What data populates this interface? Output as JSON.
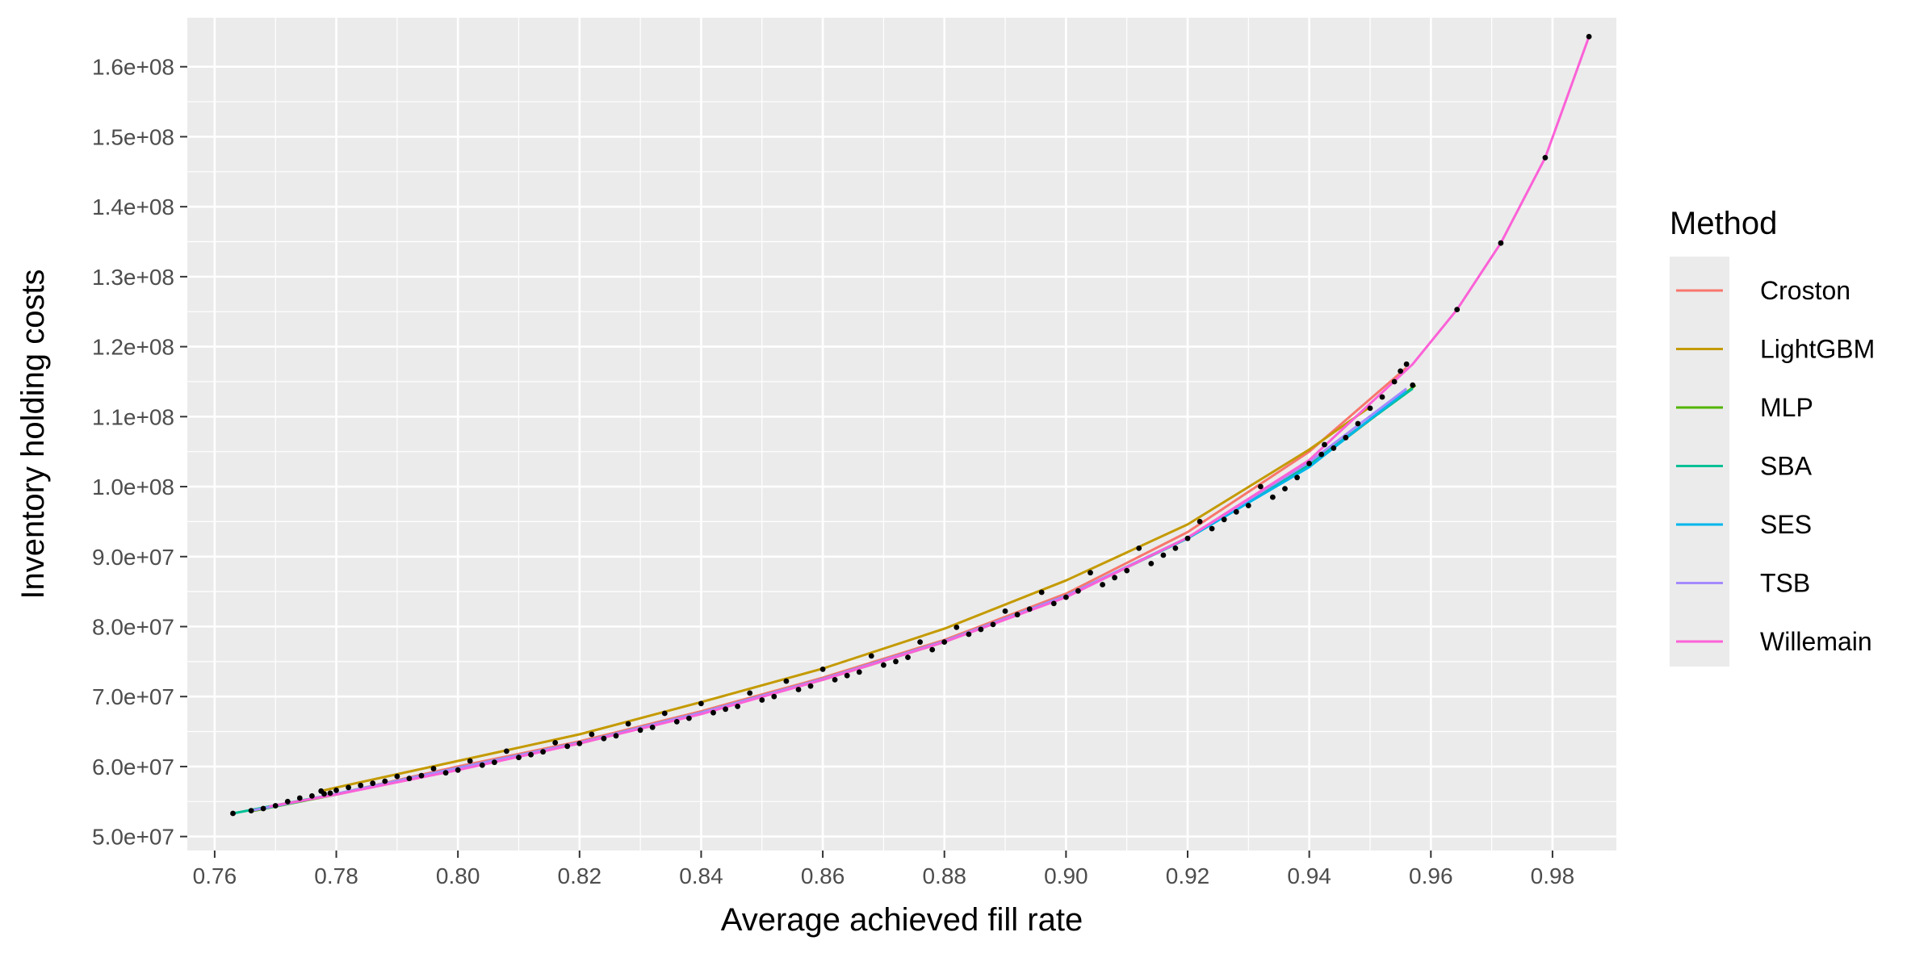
{
  "chart_data": {
    "type": "line",
    "xlabel": "Average achieved fill rate",
    "ylabel": "Inventory holding costs",
    "xlim": [
      0.7555,
      0.9905
    ],
    "ylim": [
      48000000,
      167000000
    ],
    "x_ticks": [
      0.76,
      0.78,
      0.8,
      0.82,
      0.84,
      0.86,
      0.88,
      0.9,
      0.92,
      0.94,
      0.96,
      0.98
    ],
    "x_tick_labels": [
      "0.76",
      "0.78",
      "0.80",
      "0.82",
      "0.84",
      "0.86",
      "0.88",
      "0.90",
      "0.92",
      "0.94",
      "0.96",
      "0.98"
    ],
    "y_ticks": [
      50000000,
      60000000,
      70000000,
      80000000,
      90000000,
      100000000,
      110000000,
      120000000,
      130000000,
      140000000,
      150000000,
      160000000
    ],
    "y_tick_labels": [
      "5.0e+07",
      "6.0e+07",
      "7.0e+07",
      "8.0e+07",
      "9.0e+07",
      "1.0e+08",
      "1.1e+08",
      "1.2e+08",
      "1.3e+08",
      "1.4e+08",
      "1.5e+08",
      "1.6e+08"
    ],
    "grid": true,
    "legend": {
      "title": "Method",
      "position": "right"
    },
    "series": [
      {
        "name": "Croston",
        "color": "#F8766D",
        "x": [
          0.7665,
          0.78,
          0.8,
          0.82,
          0.84,
          0.86,
          0.88,
          0.9,
          0.92,
          0.94,
          0.956
        ],
        "y": [
          53700000,
          56100000,
          60000000,
          63600000,
          67900000,
          72700000,
          78100000,
          84700000,
          93500000,
          105000000,
          117000000
        ]
      },
      {
        "name": "LightGBM",
        "color": "#C49A00",
        "x": [
          0.7775,
          0.78,
          0.8,
          0.82,
          0.84,
          0.86,
          0.88,
          0.9,
          0.92,
          0.94,
          0.95
        ],
        "y": [
          56500000,
          57000000,
          60800000,
          64600000,
          69200000,
          74000000,
          79700000,
          86600000,
          94600000,
          105300000,
          111400000
        ]
      },
      {
        "name": "MLP",
        "color": "#53B400",
        "x": [
          0.766,
          0.78,
          0.8,
          0.82,
          0.84,
          0.86,
          0.88,
          0.9,
          0.92,
          0.94,
          0.9575
        ],
        "y": [
          53600000,
          56000000,
          59700000,
          63300000,
          67600000,
          72400000,
          77800000,
          84300000,
          92600000,
          102900000,
          114500000
        ]
      },
      {
        "name": "SBA",
        "color": "#00C094",
        "x": [
          0.763,
          0.78,
          0.8,
          0.82,
          0.84,
          0.86,
          0.88,
          0.9,
          0.92,
          0.94,
          0.957
        ],
        "y": [
          53300000,
          56100000,
          59800000,
          63400000,
          67700000,
          72500000,
          77900000,
          84400000,
          92700000,
          103200000,
          114000000
        ]
      },
      {
        "name": "SES",
        "color": "#00B6EB",
        "x": [
          0.768,
          0.78,
          0.8,
          0.82,
          0.84,
          0.86,
          0.88,
          0.9,
          0.92,
          0.94,
          0.956
        ],
        "y": [
          54000000,
          56100000,
          59800000,
          63400000,
          67700000,
          72500000,
          77900000,
          84300000,
          92600000,
          102800000,
          113700000
        ]
      },
      {
        "name": "TSB",
        "color": "#A58AFF",
        "x": [
          0.766,
          0.78,
          0.8,
          0.82,
          0.84,
          0.86,
          0.88,
          0.9,
          0.92,
          0.94,
          0.956
        ],
        "y": [
          53700000,
          56100000,
          59800000,
          63400000,
          67700000,
          72500000,
          77900000,
          84400000,
          92700000,
          103500000,
          114000000
        ]
      },
      {
        "name": "Willemain",
        "color": "#FB61D7",
        "x": [
          0.769,
          0.78,
          0.8,
          0.82,
          0.84,
          0.86,
          0.88,
          0.9,
          0.92,
          0.94,
          0.957,
          0.9643,
          0.9715,
          0.9788,
          0.986
        ],
        "y": [
          54300000,
          56000000,
          59500000,
          63300000,
          67500000,
          72400000,
          77800000,
          84200000,
          92700000,
          103800000,
          117500000,
          125300000,
          134800000,
          147000000,
          164300000
        ]
      }
    ],
    "points": {
      "color": "#000000",
      "x": [
        0.763,
        0.766,
        0.768,
        0.77,
        0.772,
        0.774,
        0.776,
        0.778,
        0.779,
        0.7775,
        0.78,
        0.782,
        0.784,
        0.786,
        0.788,
        0.79,
        0.792,
        0.794,
        0.796,
        0.798,
        0.8,
        0.802,
        0.804,
        0.806,
        0.808,
        0.81,
        0.812,
        0.814,
        0.816,
        0.818,
        0.82,
        0.822,
        0.824,
        0.826,
        0.828,
        0.83,
        0.832,
        0.834,
        0.836,
        0.838,
        0.84,
        0.842,
        0.844,
        0.846,
        0.848,
        0.85,
        0.852,
        0.854,
        0.856,
        0.858,
        0.86,
        0.862,
        0.864,
        0.866,
        0.868,
        0.87,
        0.872,
        0.874,
        0.876,
        0.878,
        0.88,
        0.882,
        0.884,
        0.886,
        0.888,
        0.89,
        0.892,
        0.894,
        0.896,
        0.898,
        0.9,
        0.902,
        0.904,
        0.906,
        0.908,
        0.91,
        0.912,
        0.914,
        0.916,
        0.918,
        0.92,
        0.922,
        0.924,
        0.926,
        0.928,
        0.93,
        0.932,
        0.934,
        0.936,
        0.938,
        0.94,
        0.942,
        0.9425,
        0.944,
        0.946,
        0.948,
        0.95,
        0.952,
        0.954,
        0.955,
        0.956,
        0.957,
        0.9643,
        0.9715,
        0.9788,
        0.986
      ],
      "y": [
        53300000,
        53700000,
        54000000,
        54400000,
        55000000,
        55500000,
        55800000,
        56100000,
        56200000,
        56500000,
        56600000,
        57000000,
        57300000,
        57600000,
        57900000,
        58600000,
        58300000,
        58700000,
        59700000,
        59100000,
        59500000,
        60800000,
        60200000,
        60600000,
        62200000,
        61300000,
        61700000,
        62100000,
        63400000,
        62900000,
        63300000,
        64600000,
        64000000,
        64400000,
        66100000,
        65200000,
        65600000,
        67600000,
        66400000,
        66900000,
        69000000,
        67700000,
        68200000,
        68600000,
        70500000,
        69500000,
        70000000,
        72200000,
        71000000,
        71500000,
        73900000,
        72400000,
        73000000,
        73500000,
        75800000,
        74500000,
        75000000,
        75600000,
        77800000,
        76700000,
        77800000,
        79900000,
        78900000,
        79600000,
        80300000,
        82200000,
        81700000,
        82500000,
        84900000,
        83300000,
        84200000,
        85100000,
        87700000,
        86000000,
        87000000,
        88000000,
        91200000,
        89000000,
        90200000,
        91200000,
        92600000,
        95000000,
        94000000,
        95300000,
        96400000,
        97300000,
        100000000,
        98500000,
        99700000,
        101300000,
        103300000,
        104600000,
        106000000,
        105500000,
        107000000,
        109000000,
        111200000,
        112800000,
        115000000,
        116500000,
        117500000,
        114500000,
        125300000,
        134800000,
        147000000,
        164300000
      ]
    }
  }
}
